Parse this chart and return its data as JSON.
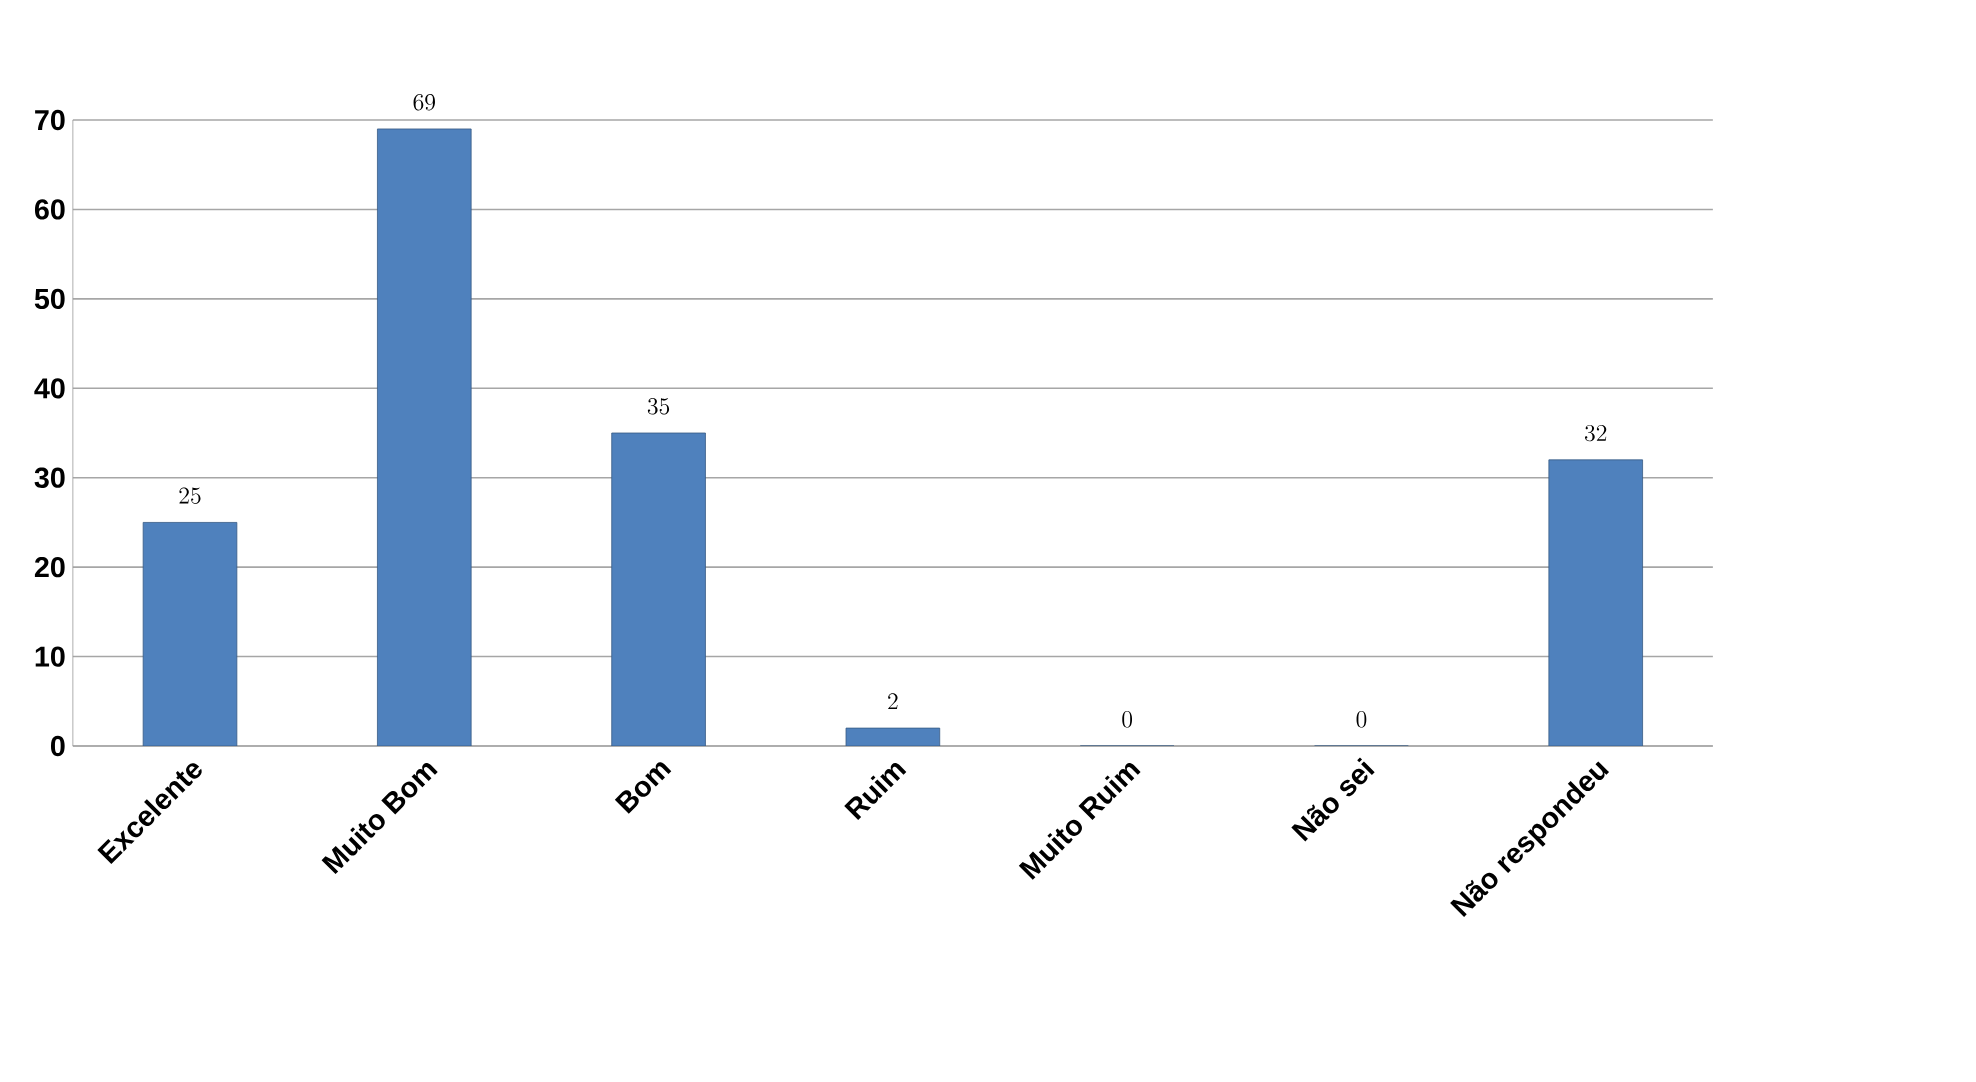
{
  "chart_data": {
    "type": "bar",
    "categories": [
      "Excelente",
      "Muito Bom",
      "Bom",
      "Ruim",
      "Muito Ruim",
      "Não sei",
      "Não respondeu"
    ],
    "values": [
      25,
      69,
      35,
      2,
      0,
      0,
      32
    ],
    "color": "#4f81bd",
    "ylim": [
      0,
      70
    ],
    "yticks": [
      0,
      10,
      20,
      30,
      40,
      50,
      60,
      70
    ],
    "grid": "y",
    "data_labels": true
  }
}
